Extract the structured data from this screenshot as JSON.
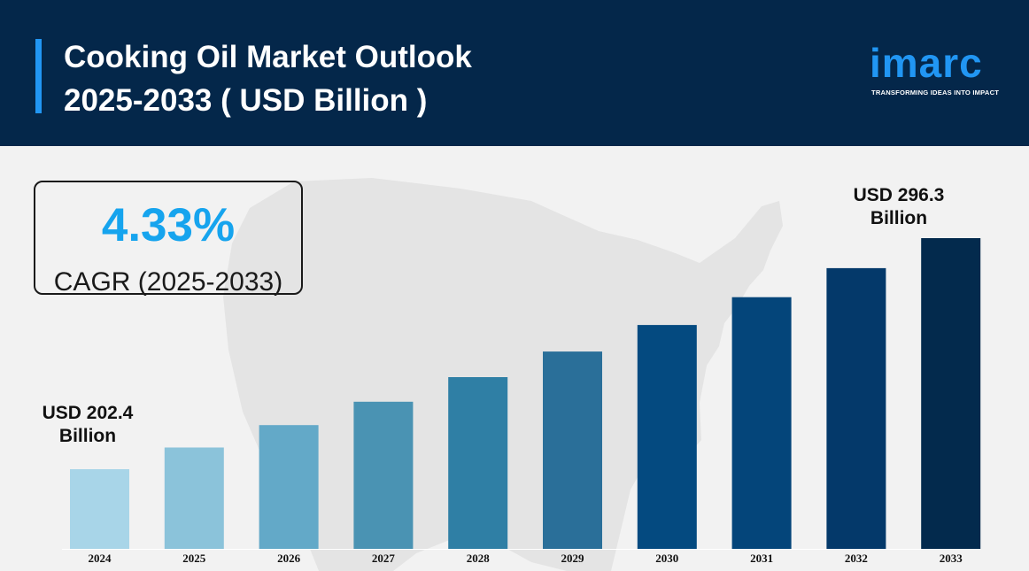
{
  "header": {
    "title_line1": "Cooking Oil Market Outlook",
    "title_line2": "2025-2033 ( USD Billion )"
  },
  "logo": {
    "word": "imarc",
    "tagline": "TRANSFORMING IDEAS INTO IMPACT"
  },
  "cagr": {
    "value": "4.33%",
    "label": "CAGR (2025-2033)"
  },
  "callouts": {
    "first": {
      "line1": "USD 202.4",
      "line2": "Billion"
    },
    "last": {
      "line1": "USD 296.3",
      "line2": "Billion"
    }
  },
  "colors": {
    "header_bg": "#04274a",
    "accent": "#2196f3",
    "cagr_value": "#16a4ee",
    "bars": [
      "#a8d5e8",
      "#8bc3da",
      "#63a9c8",
      "#4a93b3",
      "#2f7fa5",
      "#2a6f99",
      "#044a80",
      "#04457a",
      "#04396a",
      "#032a4d"
    ]
  },
  "chart_data": {
    "type": "bar",
    "title": "Cooking Oil Market Outlook 2025-2033 ( USD Billion )",
    "categories": [
      "2024",
      "2025",
      "2026",
      "2027",
      "2028",
      "2029",
      "2030",
      "2031",
      "2032",
      "2033"
    ],
    "values": [
      202.4,
      211.2,
      220.3,
      229.8,
      239.8,
      250.2,
      261.0,
      272.3,
      284.1,
      296.3
    ],
    "ylim": [
      0,
      310
    ],
    "grid": false,
    "legend": "none",
    "annotations": [
      "USD 202.4 Billion",
      "USD 296.3 Billion"
    ]
  }
}
